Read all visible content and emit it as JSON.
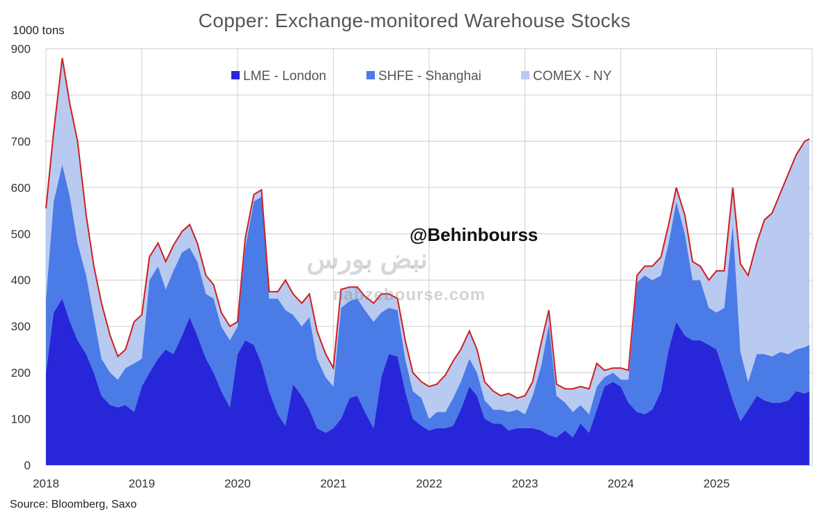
{
  "title": "Copper: Exchange-monitored Warehouse Stocks",
  "unit_label": "1000 tons",
  "source": "Source: Bloomberg, Saxo",
  "watermark": {
    "handle": "@Behinbourss",
    "site": "nabzebourse.com",
    "persian": "نبض بورس"
  },
  "chart_data": {
    "type": "area",
    "stacked": true,
    "ylabel": "1000 tons",
    "ylim": [
      0,
      900
    ],
    "yticks": [
      0,
      100,
      200,
      300,
      400,
      500,
      600,
      700,
      800,
      900
    ],
    "xlim": [
      2018.0,
      2026.0
    ],
    "xticks": [
      "2018",
      "2019",
      "2020",
      "2021",
      "2022",
      "2023",
      "2024",
      "2025"
    ],
    "legend_position": "top-center",
    "grid": true,
    "total_line_color": "#cc1f1f",
    "x": [
      2018.0,
      2018.08,
      2018.17,
      2018.25,
      2018.33,
      2018.42,
      2018.5,
      2018.58,
      2018.67,
      2018.75,
      2018.83,
      2018.92,
      2019.0,
      2019.08,
      2019.17,
      2019.25,
      2019.33,
      2019.42,
      2019.5,
      2019.58,
      2019.67,
      2019.75,
      2019.83,
      2019.92,
      2020.0,
      2020.08,
      2020.17,
      2020.25,
      2020.33,
      2020.42,
      2020.5,
      2020.58,
      2020.67,
      2020.75,
      2020.83,
      2020.92,
      2021.0,
      2021.08,
      2021.17,
      2021.25,
      2021.33,
      2021.42,
      2021.5,
      2021.58,
      2021.67,
      2021.75,
      2021.83,
      2021.92,
      2022.0,
      2022.08,
      2022.17,
      2022.25,
      2022.33,
      2022.42,
      2022.5,
      2022.58,
      2022.67,
      2022.75,
      2022.83,
      2022.92,
      2023.0,
      2023.08,
      2023.17,
      2023.25,
      2023.33,
      2023.42,
      2023.5,
      2023.58,
      2023.67,
      2023.75,
      2023.83,
      2023.92,
      2024.0,
      2024.08,
      2024.17,
      2024.25,
      2024.33,
      2024.42,
      2024.5,
      2024.58,
      2024.67,
      2024.75,
      2024.83,
      2024.92,
      2025.0,
      2025.08,
      2025.17,
      2025.25,
      2025.33,
      2025.42,
      2025.5,
      2025.58,
      2025.67,
      2025.75,
      2025.83,
      2025.92,
      2025.97
    ],
    "series": [
      {
        "name": "LME - London",
        "color": "#2727d9",
        "values": [
          200,
          330,
          360,
          310,
          270,
          240,
          200,
          150,
          130,
          125,
          130,
          115,
          170,
          200,
          230,
          250,
          240,
          280,
          320,
          280,
          230,
          200,
          160,
          125,
          240,
          270,
          260,
          220,
          160,
          110,
          85,
          175,
          150,
          120,
          80,
          70,
          80,
          100,
          145,
          150,
          115,
          80,
          190,
          240,
          235,
          160,
          100,
          85,
          75,
          80,
          80,
          85,
          120,
          170,
          150,
          100,
          90,
          90,
          75,
          80,
          80,
          80,
          75,
          65,
          60,
          75,
          60,
          90,
          70,
          120,
          170,
          180,
          170,
          135,
          115,
          110,
          120,
          160,
          250,
          310,
          280,
          270,
          270,
          260,
          250,
          200,
          140,
          95,
          120,
          150,
          140,
          135,
          135,
          140,
          160,
          155,
          160
        ]
      },
      {
        "name": "SHFE - Shanghai",
        "color": "#4b7be6",
        "values": [
          160,
          240,
          290,
          270,
          210,
          170,
          120,
          80,
          70,
          60,
          80,
          105,
          60,
          200,
          200,
          130,
          180,
          180,
          150,
          160,
          140,
          160,
          140,
          145,
          60,
          200,
          310,
          360,
          200,
          250,
          250,
          150,
          150,
          200,
          150,
          120,
          90,
          240,
          210,
          210,
          220,
          230,
          140,
          100,
          100,
          70,
          60,
          60,
          25,
          35,
          35,
          60,
          60,
          60,
          50,
          40,
          30,
          30,
          40,
          40,
          30,
          70,
          140,
          240,
          90,
          60,
          55,
          40,
          40,
          50,
          20,
          20,
          15,
          50,
          280,
          300,
          280,
          250,
          230,
          260,
          220,
          130,
          130,
          80,
          80,
          140,
          380,
          150,
          60,
          90,
          100,
          100,
          110,
          100,
          90,
          100,
          100
        ]
      },
      {
        "name": "COMEX - NY",
        "color": "#b9caf0",
        "values": [
          195,
          150,
          230,
          200,
          220,
          130,
          110,
          120,
          80,
          50,
          40,
          90,
          95,
          50,
          50,
          60,
          55,
          45,
          50,
          40,
          40,
          30,
          30,
          30,
          10,
          20,
          15,
          15,
          15,
          15,
          65,
          45,
          50,
          50,
          60,
          50,
          40,
          40,
          30,
          25,
          30,
          40,
          40,
          30,
          25,
          40,
          40,
          35,
          70,
          60,
          80,
          80,
          70,
          60,
          50,
          40,
          40,
          30,
          40,
          25,
          40,
          30,
          50,
          30,
          25,
          30,
          50,
          40,
          55,
          50,
          15,
          10,
          25,
          20,
          15,
          20,
          30,
          40,
          40,
          30,
          40,
          40,
          30,
          60,
          90,
          80,
          80,
          190,
          230,
          240,
          290,
          310,
          345,
          390,
          420,
          445,
          445
        ]
      }
    ]
  }
}
